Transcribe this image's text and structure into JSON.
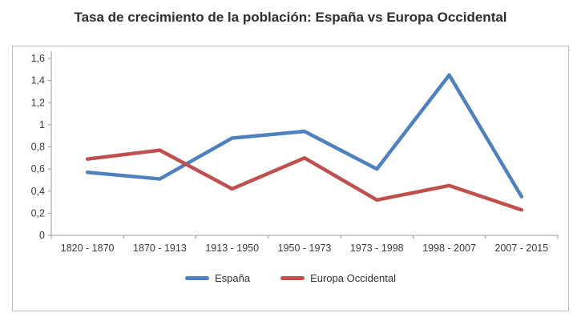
{
  "chart_data": {
    "type": "line",
    "title": "Tasa de crecimiento de la población: España vs Europa Occidental",
    "categories": [
      "1820 - 1870",
      "1870 - 1913",
      "1913 - 1950",
      "1950 - 1973",
      "1973 - 1998",
      "1998 - 2007",
      "2007 - 2015"
    ],
    "series": [
      {
        "name": "España",
        "color": "#4E81BD",
        "values": [
          0.57,
          0.51,
          0.88,
          0.94,
          0.6,
          1.45,
          0.35
        ]
      },
      {
        "name": "Europa Occidental",
        "color": "#C0504D",
        "values": [
          0.69,
          0.77,
          0.42,
          0.7,
          0.32,
          0.45,
          0.23
        ]
      }
    ],
    "xlabel": "",
    "ylabel": "",
    "ylim": [
      0,
      1.6
    ],
    "ytick_step": 0.2,
    "ytick_labels": [
      "0",
      "0,2",
      "0,4",
      "0,6",
      "0,8",
      "1",
      "1,2",
      "1,4",
      "1,6"
    ],
    "decimal_separator": ",",
    "grid": false,
    "legend_position": "bottom",
    "axis_color": "#9b9b9b"
  }
}
